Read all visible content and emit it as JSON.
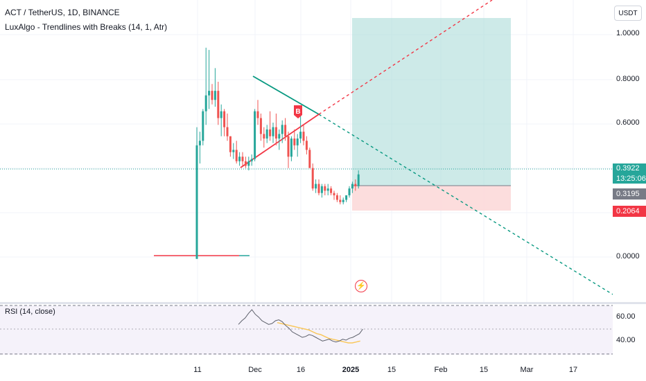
{
  "header": {
    "symbol_title": "ACT / TetherUS, 1D, BINANCE",
    "indicator_title": "LuxAlgo - Trendlines with Breaks (14, 1, Atr)"
  },
  "toolbar": {
    "currency_label": "USDT"
  },
  "price_axis": {
    "ticks": [
      "1.0000",
      "0.8000",
      "0.6000",
      "0.0000"
    ]
  },
  "price_tags": {
    "current_price": "0.3922",
    "countdown": "13:25:06",
    "entry_price": "0.3195",
    "stop_price": "0.2064"
  },
  "rsi": {
    "title": "RSI (14, close)",
    "ticks": [
      "60.00",
      "40.00"
    ]
  },
  "time_axis": {
    "ticks": [
      "11",
      "Dec",
      "16",
      "2025",
      "15",
      "Feb",
      "15",
      "Mar",
      "17"
    ]
  },
  "chart_markers": {
    "break_label": "B"
  },
  "colors": {
    "up": "#26a69a",
    "down": "#ef5350",
    "trend_down": "#089981",
    "trend_up": "#f23645",
    "tp_zone": "#b2dfdb",
    "sl_zone": "#fcd9d9",
    "rsi_line": "#5d606b",
    "rsi_ma": "#f9c75a"
  },
  "chart_data": {
    "type": "candlestick",
    "price_range": [
      -0.17,
      1.16
    ],
    "candles": [
      [
        0.02,
        0.6,
        0.02,
        0.52
      ],
      [
        0.52,
        0.58,
        0.44,
        0.54
      ],
      [
        0.54,
        0.68,
        0.52,
        0.67
      ],
      [
        0.67,
        0.95,
        0.61,
        0.74
      ],
      [
        0.74,
        0.94,
        0.68,
        0.76
      ],
      [
        0.76,
        0.79,
        0.7,
        0.72
      ],
      [
        0.72,
        0.86,
        0.69,
        0.76
      ],
      [
        0.76,
        0.8,
        0.61,
        0.64
      ],
      [
        0.64,
        0.7,
        0.56,
        0.67
      ],
      [
        0.67,
        0.68,
        0.56,
        0.6
      ],
      [
        0.6,
        0.66,
        0.54,
        0.56
      ],
      [
        0.56,
        0.56,
        0.47,
        0.49
      ],
      [
        0.49,
        0.53,
        0.46,
        0.5
      ],
      [
        0.5,
        0.54,
        0.44,
        0.45
      ],
      [
        0.45,
        0.49,
        0.43,
        0.47
      ],
      [
        0.47,
        0.49,
        0.43,
        0.45
      ],
      [
        0.45,
        0.47,
        0.42,
        0.43
      ],
      [
        0.43,
        0.47,
        0.41,
        0.45
      ],
      [
        0.45,
        0.48,
        0.43,
        0.46
      ],
      [
        0.46,
        0.68,
        0.45,
        0.67
      ],
      [
        0.67,
        0.72,
        0.61,
        0.64
      ],
      [
        0.64,
        0.66,
        0.54,
        0.57
      ],
      [
        0.57,
        0.6,
        0.51,
        0.55
      ],
      [
        0.55,
        0.61,
        0.53,
        0.59
      ],
      [
        0.59,
        0.67,
        0.54,
        0.56
      ],
      [
        0.56,
        0.62,
        0.53,
        0.6
      ],
      [
        0.6,
        0.66,
        0.52,
        0.55
      ],
      [
        0.55,
        0.59,
        0.5,
        0.57
      ],
      [
        0.57,
        0.63,
        0.53,
        0.61
      ],
      [
        0.61,
        0.64,
        0.54,
        0.56
      ],
      [
        0.56,
        0.58,
        0.42,
        0.47
      ],
      [
        0.47,
        0.56,
        0.45,
        0.55
      ],
      [
        0.55,
        0.59,
        0.5,
        0.52
      ],
      [
        0.52,
        0.57,
        0.47,
        0.55
      ],
      [
        0.55,
        0.65,
        0.53,
        0.58
      ],
      [
        0.58,
        0.61,
        0.52,
        0.54
      ],
      [
        0.54,
        0.56,
        0.48,
        0.5
      ],
      [
        0.5,
        0.51,
        0.42,
        0.42
      ],
      [
        0.42,
        0.44,
        0.32,
        0.33
      ],
      [
        0.33,
        0.37,
        0.31,
        0.35
      ],
      [
        0.35,
        0.37,
        0.3,
        0.31
      ],
      [
        0.31,
        0.35,
        0.29,
        0.34
      ],
      [
        0.34,
        0.35,
        0.3,
        0.32
      ],
      [
        0.32,
        0.35,
        0.3,
        0.33
      ],
      [
        0.33,
        0.34,
        0.3,
        0.31
      ],
      [
        0.31,
        0.32,
        0.28,
        0.3
      ],
      [
        0.3,
        0.31,
        0.27,
        0.28
      ],
      [
        0.28,
        0.3,
        0.26,
        0.27
      ],
      [
        0.27,
        0.29,
        0.26,
        0.28
      ],
      [
        0.28,
        0.3,
        0.27,
        0.3
      ],
      [
        0.3,
        0.34,
        0.29,
        0.33
      ],
      [
        0.33,
        0.36,
        0.31,
        0.35
      ],
      [
        0.35,
        0.37,
        0.32,
        0.34
      ],
      [
        0.34,
        0.41,
        0.33,
        0.392
      ]
    ],
    "trendline_down": {
      "from_price": 0.81,
      "to_price": 0.64
    },
    "trendline_up": {
      "from_price": 0.4,
      "to_price": 0.64
    },
    "support_line_price": 0.0,
    "position": {
      "target": 1.07,
      "entry": 0.3195,
      "stop": 0.2064
    },
    "rsi_values": [
      58,
      62,
      65,
      70,
      74,
      69,
      66,
      62,
      60,
      58,
      59,
      62,
      63,
      61,
      57,
      54,
      50,
      48,
      46,
      44,
      45,
      47,
      46,
      44,
      42,
      40,
      41,
      42,
      40,
      39,
      40,
      42,
      41,
      43,
      44,
      46,
      48,
      53
    ],
    "rsi_ma": [
      60,
      59,
      58,
      57,
      56,
      55,
      54,
      53,
      52,
      50,
      48,
      47,
      45,
      43,
      42,
      41,
      40,
      39,
      38,
      38,
      39,
      40
    ],
    "rsi_range": [
      20,
      80
    ],
    "rsi_bands": [
      70,
      50,
      30
    ]
  }
}
